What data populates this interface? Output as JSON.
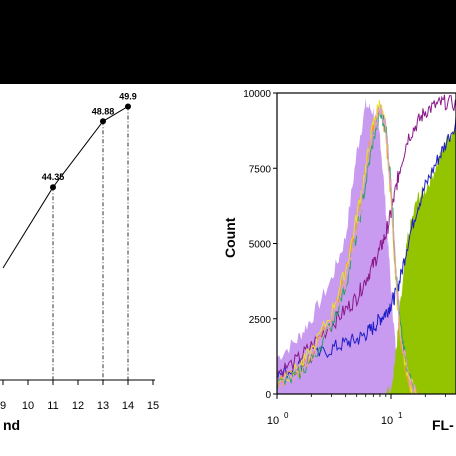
{
  "colors": {
    "background": "#ffffff",
    "band": "#000000",
    "line": "#000000",
    "lilac_fill": "#c89af0",
    "green_fill": "#94c400",
    "dark_blue": "#2020c8",
    "purple": "#8a1a8a",
    "orange": "#f0a020",
    "yellow": "#e8e030",
    "teal": "#2aa070",
    "pink": "#e0a0c0"
  },
  "chart_data": [
    {
      "type": "line",
      "xlabel": "nd",
      "x_ticks": [
        "9",
        "10",
        "11",
        "12",
        "13",
        "14",
        "15"
      ],
      "xlim": [
        9,
        15
      ],
      "ylim": [
        30,
        52
      ],
      "series": [
        {
          "points": [
            {
              "x": 9.0,
              "y": 38.8,
              "label": ""
            },
            {
              "x": 11,
              "y": 44.35,
              "label": "44.35"
            },
            {
              "x": 13,
              "y": 48.88,
              "label": "48.88"
            },
            {
              "x": 14,
              "y": 49.9,
              "label": "49.9"
            }
          ]
        }
      ],
      "drop_lines_at": [
        11,
        13,
        14
      ]
    },
    {
      "type": "area",
      "ylabel": "Count",
      "xlabel": "FL-",
      "x_scale": "log",
      "xlim": [
        1,
        40
      ],
      "ylim": [
        0,
        10000
      ],
      "y_ticks": [
        "0",
        "2500",
        "5000",
        "7500",
        "10000"
      ],
      "x_ticks": [
        {
          "value": 1,
          "base": "10",
          "exp": "0"
        },
        {
          "value": 10,
          "base": "10",
          "exp": "1"
        }
      ],
      "series": [
        {
          "style": "fill",
          "color_key": "lilac_fill",
          "x": [
            1,
            1.5,
            2,
            3,
            4,
            5,
            6,
            7,
            8,
            9,
            10,
            11,
            12,
            14,
            17,
            20,
            25,
            30,
            40
          ],
          "y": [
            1200,
            1800,
            2500,
            3800,
            5200,
            8000,
            9600,
            9400,
            8600,
            6200,
            3500,
            1500,
            500,
            100,
            0,
            0,
            0,
            0,
            0
          ]
        },
        {
          "style": "fill",
          "color_key": "green_fill",
          "x": [
            1,
            1.5,
            2,
            3,
            4,
            5,
            6,
            7,
            8,
            9,
            10,
            11,
            12,
            14,
            17,
            20,
            25,
            30,
            40
          ],
          "y": [
            0,
            0,
            0,
            0,
            0,
            0,
            0,
            0,
            0,
            0,
            200,
            1300,
            2800,
            5200,
            6500,
            6800,
            7600,
            8300,
            9200
          ]
        },
        {
          "style": "line",
          "color_key": "dark_blue",
          "x": [
            1,
            1.5,
            2,
            3,
            4,
            5,
            6,
            7,
            8,
            9,
            10,
            11,
            12,
            14,
            17,
            20,
            25,
            30,
            40
          ],
          "y": [
            600,
            900,
            1200,
            1500,
            1700,
            1800,
            2000,
            2200,
            2500,
            2700,
            3000,
            3300,
            3800,
            5000,
            6200,
            6900,
            7700,
            8300,
            9300
          ]
        },
        {
          "style": "line",
          "color_key": "purple",
          "x": [
            1,
            1.5,
            2,
            3,
            4,
            5,
            6,
            7,
            8,
            9,
            10,
            11,
            12,
            14,
            17,
            20,
            25,
            30,
            40
          ],
          "y": [
            700,
            1100,
            1600,
            2300,
            2800,
            3200,
            3800,
            4300,
            4800,
            5300,
            6000,
            6800,
            7500,
            8500,
            9000,
            9400,
            9600,
            9700,
            9600
          ]
        },
        {
          "style": "line",
          "color_key": "orange",
          "x": [
            1,
            1.5,
            2,
            3,
            4,
            5,
            6,
            7,
            8,
            9,
            10,
            11,
            12,
            14,
            17,
            20,
            25,
            30,
            40
          ],
          "y": [
            400,
            700,
            1300,
            2600,
            4000,
            5800,
            7400,
            8900,
            9600,
            8600,
            6500,
            3800,
            1900,
            400,
            0,
            0,
            0,
            0,
            0
          ]
        },
        {
          "style": "line",
          "color_key": "yellow",
          "x": [
            1,
            1.5,
            2,
            3,
            4,
            5,
            6,
            7,
            8,
            9,
            10,
            11,
            12,
            14,
            17,
            20,
            25,
            30,
            40
          ],
          "y": [
            500,
            800,
            1400,
            2700,
            4100,
            5900,
            7500,
            9000,
            9700,
            8800,
            6700,
            4000,
            2000,
            500,
            0,
            0,
            0,
            0,
            0
          ]
        },
        {
          "style": "line",
          "color_key": "teal",
          "x": [
            1,
            1.5,
            2,
            3,
            4,
            5,
            6,
            7,
            8,
            9,
            10,
            11,
            12,
            14,
            17,
            20,
            25,
            30,
            40
          ],
          "y": [
            300,
            600,
            1100,
            2300,
            3600,
            5300,
            7000,
            8500,
            9300,
            8900,
            7000,
            4300,
            2300,
            700,
            0,
            0,
            0,
            0,
            0
          ]
        },
        {
          "style": "line",
          "color_key": "pink",
          "x": [
            1,
            1.5,
            2,
            3,
            4,
            5,
            6,
            7,
            8,
            9,
            10,
            11,
            12,
            14,
            17,
            20,
            25,
            30,
            40
          ],
          "y": [
            400,
            700,
            1200,
            2400,
            3700,
            5500,
            7200,
            8700,
            9500,
            8900,
            6900,
            4200,
            2200,
            600,
            0,
            0,
            0,
            0,
            0
          ]
        }
      ]
    }
  ]
}
